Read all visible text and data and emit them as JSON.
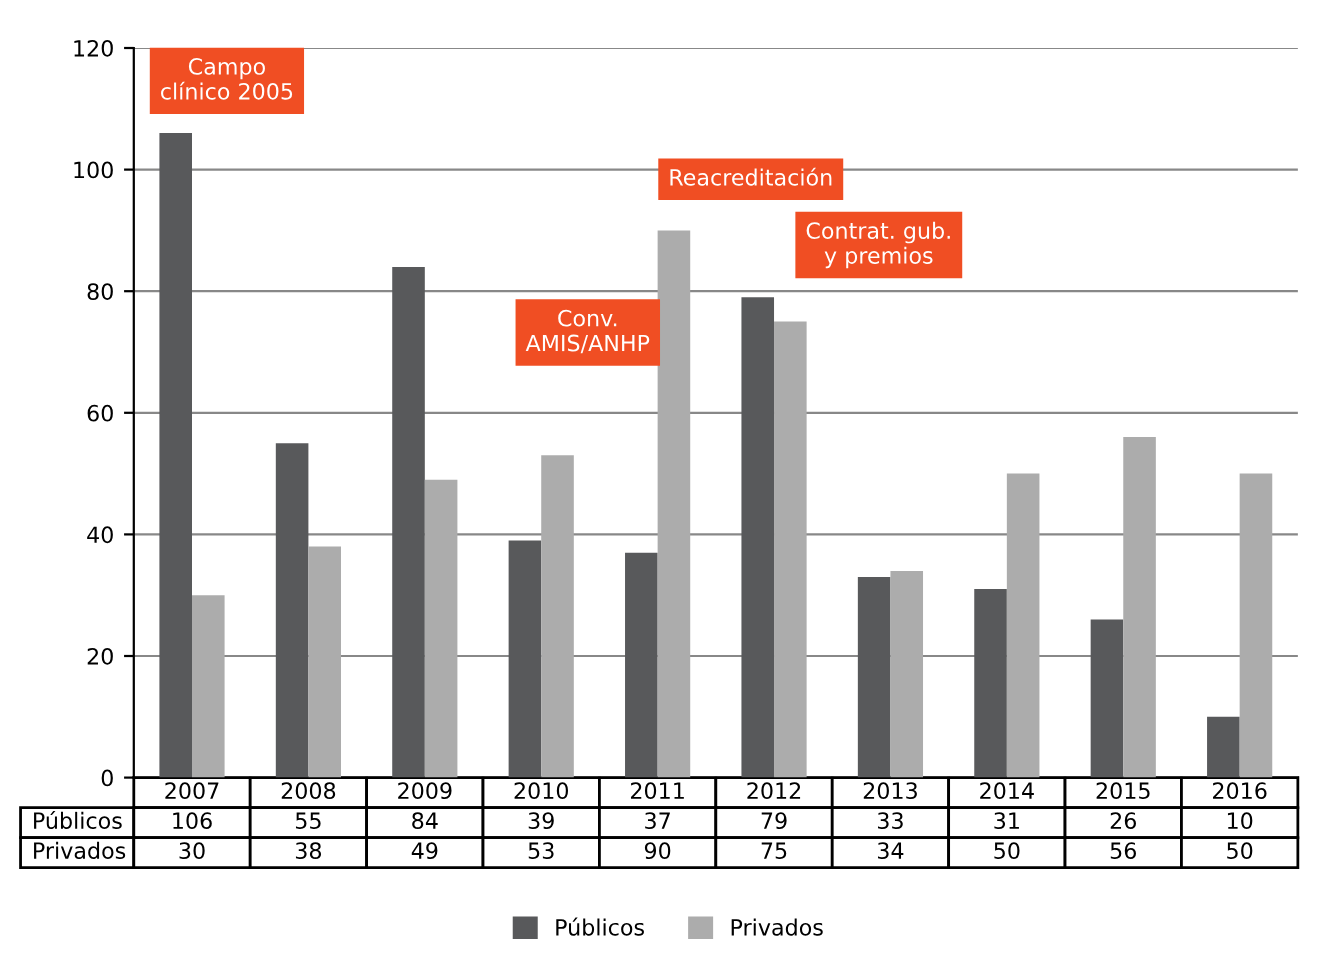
{
  "chart_data": {
    "type": "bar",
    "categories": [
      "2007",
      "2008",
      "2009",
      "2010",
      "2011",
      "2012",
      "2013",
      "2014",
      "2015",
      "2016"
    ],
    "series": [
      {
        "name": "Públicos",
        "color": "#58595b",
        "values": [
          106,
          55,
          84,
          39,
          37,
          79,
          33,
          31,
          26,
          10
        ]
      },
      {
        "name": "Privados",
        "color": "#acacac",
        "values": [
          30,
          38,
          49,
          53,
          90,
          75,
          34,
          50,
          56,
          50
        ]
      }
    ],
    "ylim": [
      0,
      120
    ],
    "yticks": [
      0,
      20,
      40,
      60,
      80,
      100,
      120
    ],
    "grid": "y",
    "legend": "bottom",
    "data_labels": true,
    "annotations": [
      "Campo\nclínico 2005",
      "Reacreditación",
      "Conv.\nAMIS/ANHP",
      "Contrat. gub.\ny premios"
    ]
  }
}
